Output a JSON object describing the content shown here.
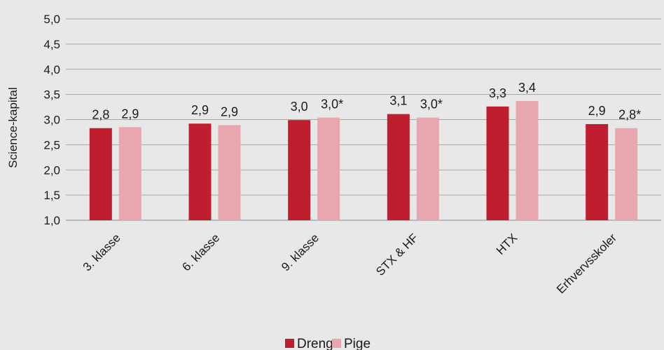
{
  "chart_data": {
    "type": "bar",
    "ylabel": "Science-kapital",
    "ylim": [
      1.0,
      5.0
    ],
    "yticks": [
      1.0,
      1.5,
      2.0,
      2.5,
      3.0,
      3.5,
      4.0,
      4.5,
      5.0
    ],
    "yticklabels": [
      "1,0",
      "1,5",
      "2,0",
      "2,5",
      "3,0",
      "3,5",
      "4,0",
      "4,5",
      "5,0"
    ],
    "categories": [
      "3. klasse",
      "6. klasse",
      "9. klasse",
      "STX & HF",
      "HTX",
      "Erhvervsskoler"
    ],
    "series": [
      {
        "name": "Dreng",
        "color": "#be1e2d",
        "values": [
          2.83,
          2.92,
          2.99,
          3.11,
          3.26,
          2.91
        ],
        "labels": [
          "2,8",
          "2,9",
          "3,0",
          "3,1",
          "3,3",
          "2,9"
        ]
      },
      {
        "name": "Pige",
        "color": "#e8a7ae",
        "values": [
          2.85,
          2.89,
          3.04,
          3.04,
          3.37,
          2.83
        ],
        "labels": [
          "2,9",
          "2,9",
          "3,0*",
          "3,0*",
          "3,4",
          "2,8*"
        ]
      }
    ],
    "grid": true,
    "legend_position": "bottom"
  }
}
